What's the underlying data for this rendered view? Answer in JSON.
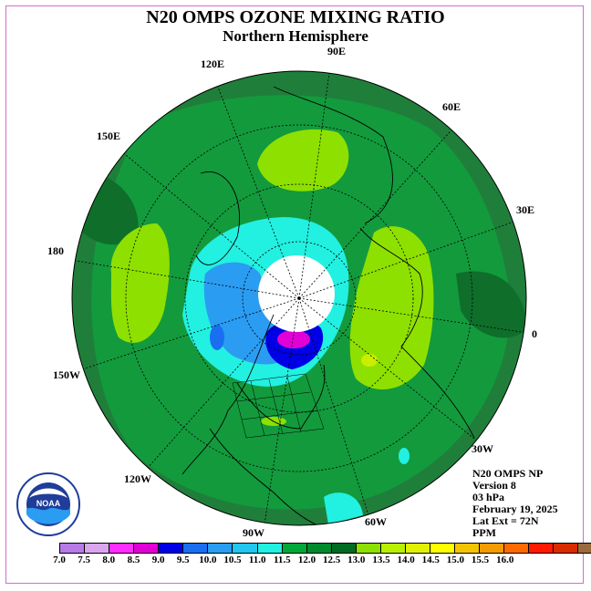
{
  "title": "N20 OMPS OZONE MIXING RATIO",
  "subtitle": "Northern Hemisphere",
  "longitude_labels": {
    "e90": "90E",
    "e120": "120E",
    "e60": "60E",
    "e150": "150E",
    "e30": "30E",
    "l180": "180",
    "l0": "0",
    "w150": "150W",
    "w30": "30W",
    "w120": "120W",
    "w60": "60W",
    "w90": "90W"
  },
  "info": {
    "line1": "N20 OMPS NP",
    "line2": "Version 8",
    "line3": "03 hPa",
    "line4": "February 19, 2025",
    "line5": "Lat Ext = 72N",
    "line6": "PPM"
  },
  "logo_text": "NOAA",
  "colorbar": {
    "colors": [
      "#b77be8",
      "#d9a6ee",
      "#ff2eff",
      "#e100d6",
      "#0000e6",
      "#1a6ff0",
      "#2a9cf2",
      "#22c6ef",
      "#22f0e1",
      "#00a83a",
      "#008a2e",
      "#006b22",
      "#8ee000",
      "#b9ef00",
      "#e1f200",
      "#ffff00",
      "#f5c400",
      "#f39c00",
      "#ff6a00",
      "#ff1a00",
      "#d82b00",
      "#9a6a3c"
    ],
    "tick_labels": [
      "7.0",
      "7.5",
      "8.0",
      "8.5",
      "9.0",
      "9.5",
      "10.0",
      "10.5",
      "11.0",
      "11.5",
      "12.0",
      "12.5",
      "13.0",
      "13.5",
      "14.0",
      "14.5",
      "15.0",
      "15.5",
      "16.0"
    ]
  },
  "colors": {
    "base_dark_green": "#1f7f3a",
    "mid_green": "#169a3c",
    "light_green": "#8ee000",
    "cyan": "#22f0e1",
    "blue": "#1a6ff0",
    "deep_blue": "#0000e6",
    "magenta": "#e100d6",
    "polar_white": "#ffffff",
    "frame_pink": "#d36bd3"
  }
}
